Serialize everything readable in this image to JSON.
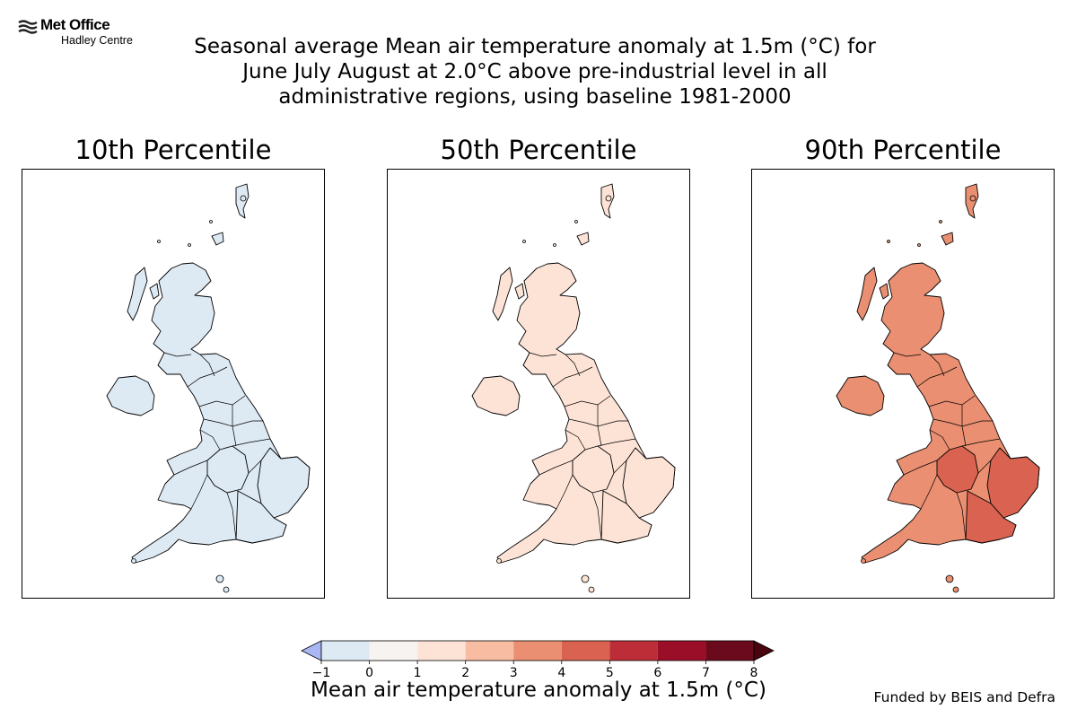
{
  "logo": {
    "name": "Met Office",
    "sub": "Hadley Centre"
  },
  "title_lines": [
    "Seasonal average Mean air temperature anomaly at 1.5m (°C) for",
    "June July August at 2.0°C above pre-industrial level in all",
    "administrative regions, using baseline 1981-2000"
  ],
  "panels": [
    {
      "title": "10th Percentile",
      "fills": {
        "base": "#dde9f3",
        "southeast": "#dde9f3",
        "midlands": "#dde9f3"
      }
    },
    {
      "title": "50th Percentile",
      "fills": {
        "base": "#fde3d6",
        "southeast": "#fde3d6",
        "midlands": "#fde3d6"
      }
    },
    {
      "title": "90th Percentile",
      "fills": {
        "base": "#ea8f71",
        "southeast": "#d96350",
        "midlands": "#d96350"
      }
    }
  ],
  "colorbar": {
    "label": "Mean air temperature anomaly at 1.5m (°C)",
    "ticks": [
      "−1",
      "0",
      "1",
      "2",
      "3",
      "4",
      "5",
      "6",
      "7",
      "8"
    ],
    "under_color": "#a9b8f5",
    "over_color": "#4a0410",
    "colors": [
      "#dde9f3",
      "#f6f3f1",
      "#fde3d6",
      "#f8bca2",
      "#ea8f71",
      "#d96350",
      "#bd2d37",
      "#9a0f27",
      "#6c0a1d"
    ]
  },
  "credit": "Funded by BEIS and Defra"
}
